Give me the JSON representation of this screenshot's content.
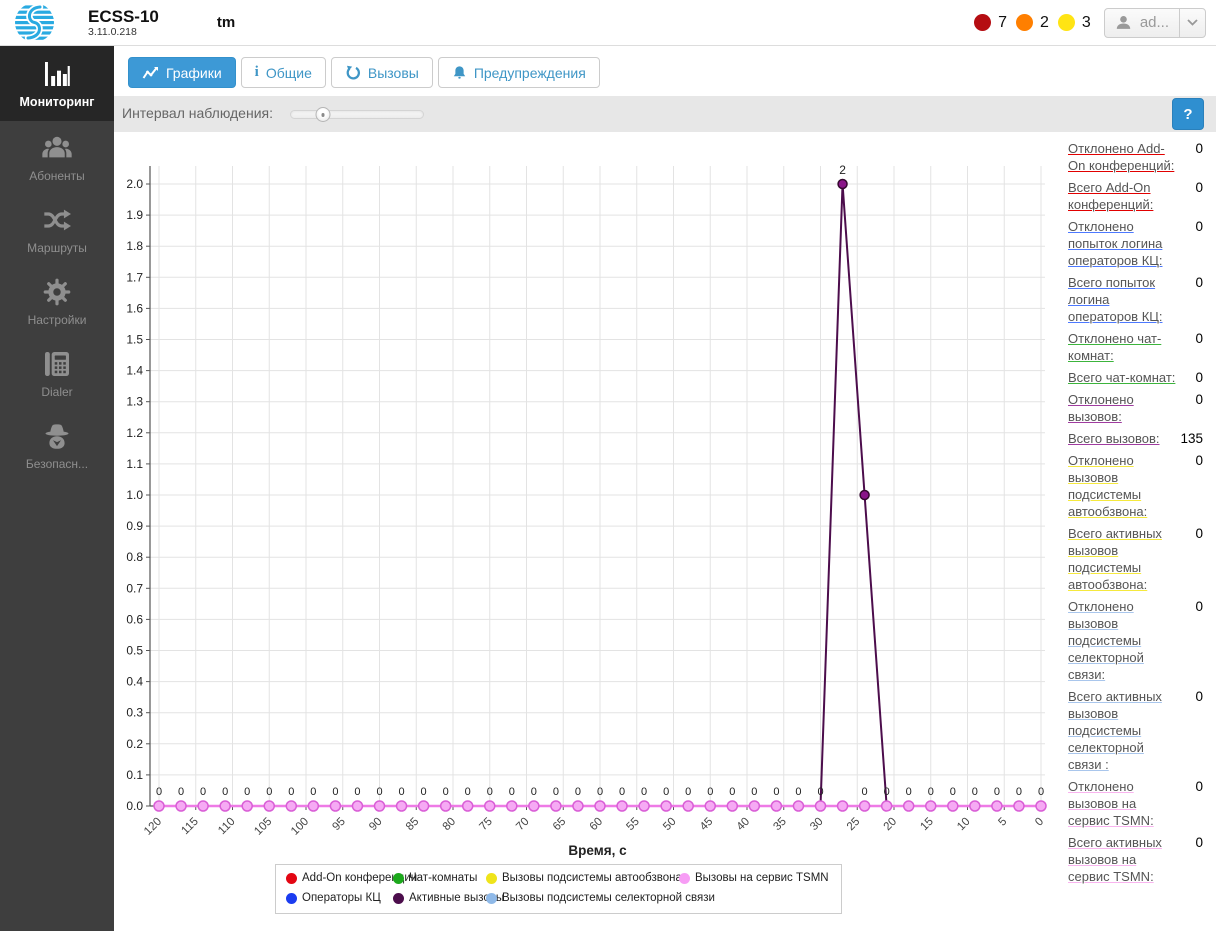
{
  "header": {
    "app_name": "ECSS-10",
    "version": "3.11.0.218",
    "system_name": "tm",
    "alerts": [
      {
        "color": "#b50d12",
        "count": "7"
      },
      {
        "color": "#ff7f00",
        "count": "2"
      },
      {
        "color": "#ffe414",
        "count": "3"
      }
    ],
    "user_menu": {
      "label": "ad..."
    }
  },
  "sidebar": {
    "items": [
      {
        "label": "Мониторинг",
        "icon": "bar-chart-icon",
        "active": true
      },
      {
        "label": "Абоненты",
        "icon": "users-icon",
        "active": false
      },
      {
        "label": "Маршруты",
        "icon": "routes-icon",
        "active": false
      },
      {
        "label": "Настройки",
        "icon": "gear-icon",
        "active": false
      },
      {
        "label": "Dialer",
        "icon": "dialer-icon",
        "active": false
      },
      {
        "label": "Безопасн...",
        "icon": "security-icon",
        "active": false
      }
    ]
  },
  "tabs": [
    {
      "label": "Графики",
      "icon": "chart-icon",
      "active": true
    },
    {
      "label": "Общие",
      "icon": "info-icon",
      "active": false
    },
    {
      "label": "Вызовы",
      "icon": "history-icon",
      "active": false
    },
    {
      "label": "Предупреждения",
      "icon": "bell-icon",
      "active": false
    }
  ],
  "toolbar": {
    "interval_label": "Интервал наблюдения:",
    "slider_percent": 24,
    "help_label": "?"
  },
  "stats": [
    {
      "label": "Отклонено Add-On конференций:",
      "value": "0",
      "underline_color": "#e10000"
    },
    {
      "label": "Всего Add-On конференций:",
      "value": "0",
      "underline_color": "#e10000"
    },
    {
      "label": "Отклонено попыток логина операторов КЦ:",
      "value": "0",
      "underline_color": "#4d79ff"
    },
    {
      "label": "Всего попыток логина операторов КЦ:",
      "value": "0",
      "underline_color": "#4d79ff"
    },
    {
      "label": "Отклонено чат-комнат:",
      "value": "0",
      "underline_color": "#3cb43c"
    },
    {
      "label": "Всего чат-комнат:",
      "value": "0",
      "underline_color": "#3cb43c"
    },
    {
      "label": "Отклонено вызовов:",
      "value": "0",
      "underline_color": "#a03ca0"
    },
    {
      "label": "Всего вызовов:",
      "value": "135",
      "underline_color": "#a03ca0"
    },
    {
      "label": "Отклонено вызовов подсистемы автообзвона:",
      "value": "0",
      "underline_color": "#f5e93e"
    },
    {
      "label": "Всего активных вызовов подсистемы автообзвона:",
      "value": "0",
      "underline_color": "#f5e93e"
    },
    {
      "label": "Отклонено вызовов подсистемы селекторной связи:",
      "value": "0",
      "underline_color": "#a9c6ec"
    },
    {
      "label": "Всего активных вызовов подсистемы селекторной связи :",
      "value": "0",
      "underline_color": "#a9c6ec"
    },
    {
      "label": "Отклонено вызовов на сервис TSMN:",
      "value": "0",
      "underline_color": "#f9b4ef"
    },
    {
      "label": "Всего активных вызовов на сервис TSMN:",
      "value": "0",
      "underline_color": "#f9b4ef"
    }
  ],
  "chart_data": {
    "type": "line",
    "xlabel": "Время, с",
    "ylim": [
      0,
      2.0
    ],
    "y_tick_step": 0.1,
    "x_ticks": [
      120,
      115,
      110,
      105,
      100,
      95,
      90,
      85,
      80,
      75,
      70,
      65,
      60,
      55,
      50,
      45,
      40,
      35,
      30,
      25,
      20,
      15,
      10,
      5,
      0
    ],
    "x_points": [
      120,
      117,
      114,
      111,
      108,
      105,
      102,
      99,
      96,
      93,
      90,
      87,
      84,
      81,
      78,
      75,
      72,
      69,
      66,
      63,
      60,
      57,
      54,
      51,
      48,
      45,
      42,
      39,
      36,
      33,
      30,
      27,
      24,
      21,
      18,
      15,
      12,
      9,
      6,
      3,
      0
    ],
    "series": [
      {
        "name": "Add-On конференции",
        "color": "#e30613",
        "values": {
          "default": 0
        }
      },
      {
        "name": "Чат-комнаты",
        "color": "#1ca81c",
        "values": {
          "default": 0
        }
      },
      {
        "name": "Вызовы подсистемы автообзвона",
        "color": "#efe41b",
        "values": {
          "default": 0
        }
      },
      {
        "name": "Операторы КЦ",
        "color": "#1b3cf0",
        "values": {
          "default": 0
        }
      },
      {
        "name": "Вызовы подсистемы селекторной связи",
        "color": "#8fb9e8",
        "values": {
          "default": 0
        }
      },
      {
        "name": "Активные вызовы",
        "color": "#4c0d4c",
        "marker_fill": "#8a1589",
        "marker_stroke": "#35082f",
        "line_width": 2,
        "marker_r": 4.5,
        "values": {
          "default": 0,
          "overrides": {
            "27": 2,
            "24": 1
          }
        }
      },
      {
        "name": "Вызовы на сервис TSMN",
        "color": "#ee7ae6",
        "legend_color": "#f79df5",
        "marker_fill": "#f6aaf4",
        "marker_stroke": "#d95fd6",
        "line_width": 2.5,
        "marker_r": 5,
        "values": {
          "default": 0
        }
      }
    ],
    "value_labels": {
      "text": "0",
      "skip_x": [
        27
      ]
    },
    "annotations": [
      {
        "x": 27,
        "y": 2,
        "text": "2"
      }
    ],
    "legend_rows": [
      [
        "Add-On конференции",
        "Чат-комнаты",
        "Вызовы подсистемы автообзвона",
        "Вызовы на сервис TSMN"
      ],
      [
        "Операторы КЦ",
        "Активные вызовы",
        "Вызовы подсистемы селекторной связи"
      ]
    ],
    "grid": true,
    "legend_position": "bottom"
  }
}
